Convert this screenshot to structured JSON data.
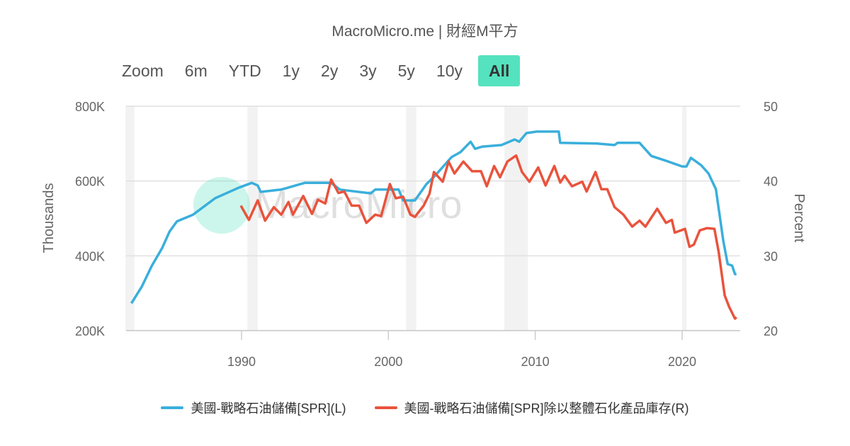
{
  "title": "MacroMicro.me | 財經M平方",
  "range_selector": {
    "label": "Zoom",
    "buttons": [
      "6m",
      "YTD",
      "1y",
      "2y",
      "3y",
      "5y",
      "10y",
      "All"
    ],
    "active": "All"
  },
  "watermark": "MacroMicro",
  "colors": {
    "series_left": "#3aafdb",
    "series_right": "#e9533c",
    "recession": "#f2f2f2",
    "active_button": "#55e2bf"
  },
  "chart_data": {
    "type": "line",
    "x_ticks": [
      1990,
      2000,
      2010,
      2020
    ],
    "xlim": [
      1982.1,
      2024.0
    ],
    "left_axis": {
      "title": "Thousands",
      "ylim": [
        200,
        800
      ],
      "tick_labels": [
        "200K",
        "400K",
        "600K",
        "800K"
      ],
      "ticks": [
        200,
        400,
        600,
        800
      ]
    },
    "right_axis": {
      "title": "Percent",
      "ylim": [
        20,
        50
      ],
      "tick_labels": [
        "20",
        "30",
        "40",
        "50"
      ],
      "ticks": [
        20,
        30,
        40,
        50
      ]
    },
    "grid": true,
    "legend_position": "bottom",
    "recession_bands": [
      [
        1982.1,
        1982.7
      ],
      [
        1990.4,
        1991.1
      ],
      [
        2001.2,
        2001.9
      ],
      [
        2007.9,
        2009.5
      ],
      [
        2020.0,
        2020.3
      ]
    ],
    "series": [
      {
        "name": "美國-戰略石油儲備[SPR](L)",
        "axis": "left",
        "x": [
          1982.5,
          1983.2,
          1983.9,
          1984.6,
          1985.1,
          1985.6,
          1986.7,
          1988.2,
          1989.8,
          1990.7,
          1991.1,
          1991.3,
          1992.7,
          1994.3,
          1996.1,
          1996.7,
          1998.8,
          1999.1,
          2000.7,
          2001.0,
          2001.8,
          2002.6,
          2003.1,
          2004.3,
          2004.9,
          2005.6,
          2005.9,
          2006.4,
          2007.7,
          2008.6,
          2008.9,
          2009.4,
          2010.1,
          2011.6,
          2011.7,
          2014.2,
          2015.4,
          2015.6,
          2017.1,
          2017.9,
          2018.9,
          2020.0,
          2020.3,
          2020.6,
          2021.3,
          2021.8,
          2022.3,
          2022.8,
          2023.1,
          2023.4,
          2023.6,
          2023.7
        ],
        "y": [
          273,
          317,
          374,
          421,
          465,
          492,
          510,
          554,
          582,
          595,
          588,
          571,
          577,
          595,
          595,
          577,
          567,
          577,
          577,
          548,
          548,
          592,
          611,
          664,
          677,
          705,
          686,
          692,
          696,
          711,
          705,
          728,
          732,
          732,
          702,
          700,
          696,
          702,
          702,
          667,
          654,
          639,
          639,
          662,
          642,
          620,
          578,
          440,
          378,
          374,
          351,
          351
        ]
      },
      {
        "name": "美國-戰略石油儲備[SPR]除以整體石化產品庫存(R)",
        "axis": "right",
        "x": [
          1989.95,
          1990.5,
          1991.1,
          1991.6,
          1992.2,
          1992.7,
          1993.2,
          1993.5,
          1994.2,
          1994.8,
          1995.2,
          1995.7,
          1996.1,
          1996.6,
          1997.0,
          1997.5,
          1998.0,
          1998.5,
          1999.1,
          1999.5,
          2000.1,
          2000.5,
          2001.0,
          2001.5,
          2001.8,
          2002.4,
          2002.8,
          2003.1,
          2003.7,
          2004.1,
          2004.5,
          2005.1,
          2005.7,
          2006.3,
          2006.7,
          2007.2,
          2007.6,
          2008.1,
          2008.7,
          2009.1,
          2009.6,
          2010.2,
          2010.7,
          2011.3,
          2011.7,
          2012.0,
          2012.5,
          2013.2,
          2013.5,
          2014.1,
          2014.5,
          2014.9,
          2015.4,
          2016.0,
          2016.6,
          2017.1,
          2017.5,
          2018.3,
          2018.9,
          2019.3,
          2019.5,
          2020.2,
          2020.5,
          2020.8,
          2021.2,
          2021.7,
          2022.2,
          2022.5,
          2022.9,
          2023.2,
          2023.6,
          2023.7
        ],
        "y": [
          36.7,
          34.8,
          37.4,
          34.7,
          36.5,
          35.5,
          37.2,
          35.5,
          38.0,
          35.6,
          37.5,
          37.0,
          40.2,
          38.4,
          38.6,
          36.7,
          36.7,
          34.4,
          35.5,
          35.3,
          39.6,
          37.7,
          37.9,
          35.5,
          35.2,
          36.7,
          38.3,
          41.2,
          39.9,
          42.6,
          41.0,
          42.6,
          41.3,
          41.3,
          39.3,
          42.0,
          40.5,
          42.6,
          43.4,
          41.2,
          39.9,
          41.8,
          39.4,
          42.0,
          39.8,
          40.7,
          39.3,
          39.9,
          38.6,
          41.2,
          38.9,
          38.9,
          36.5,
          35.5,
          33.9,
          34.7,
          33.9,
          36.3,
          34.4,
          34.8,
          33.1,
          33.6,
          31.2,
          31.5,
          33.4,
          33.7,
          33.6,
          30.4,
          24.7,
          23.2,
          21.6,
          21.8
        ]
      }
    ]
  }
}
